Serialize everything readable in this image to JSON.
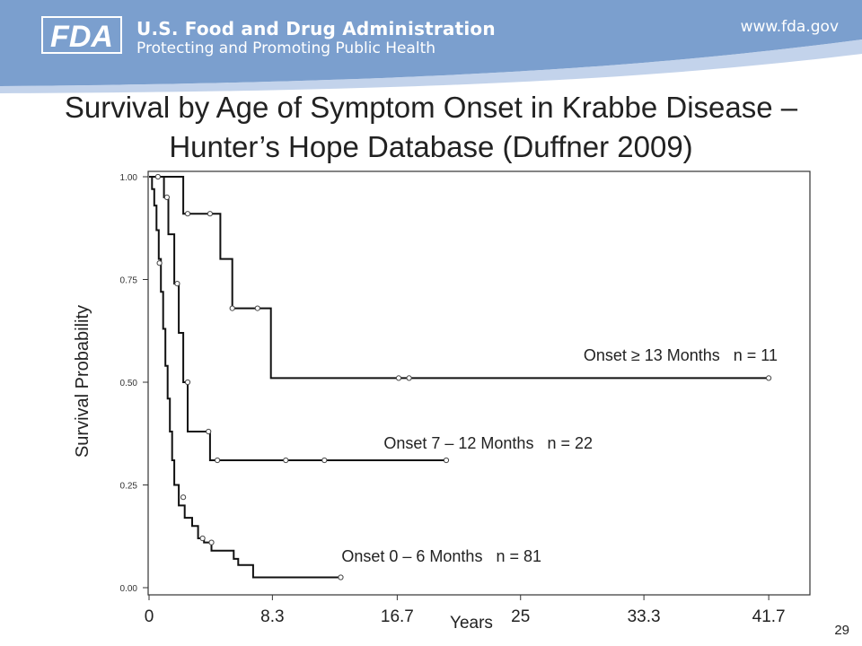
{
  "header": {
    "logo_text": "FDA",
    "agency_name": "U.S. Food and Drug Administration",
    "tagline": "Protecting and Promoting Public Health",
    "website": "www.fda.gov",
    "colors": {
      "banner": "#7b9fce",
      "banner_light": "#a9c1e2"
    }
  },
  "slide": {
    "title_line1": "Survival by Age of Symptom Onset in Krabbe Disease –",
    "title_line2": "Hunter’s Hope Database (Duffner 2009)",
    "page_number": "29"
  },
  "chart_data": {
    "type": "line",
    "title": "",
    "xlabel": "Years",
    "ylabel": "Survival Probability",
    "xlim": [
      0,
      43.5
    ],
    "ylim": [
      0,
      1.0
    ],
    "x_ticks": [
      "0",
      "8.3",
      "16.7",
      "25",
      "33.3",
      "41.7"
    ],
    "x_tick_values": [
      0,
      8.3,
      16.7,
      25,
      33.3,
      41.7
    ],
    "y_ticks": [
      "0.00",
      "0.25",
      "0.50",
      "0.75",
      "1.00"
    ],
    "y_tick_values": [
      0,
      0.25,
      0.5,
      0.75,
      1.0
    ],
    "grid": false,
    "series": [
      {
        "name": "Onset ≥ 13 Months",
        "label": "Onset ≥ 13 Months   n = 11",
        "step_points": [
          [
            0,
            1.0
          ],
          [
            2.3,
            1.0
          ],
          [
            2.3,
            0.91
          ],
          [
            4.8,
            0.91
          ],
          [
            4.8,
            0.8
          ],
          [
            5.6,
            0.8
          ],
          [
            5.6,
            0.68
          ],
          [
            8.2,
            0.68
          ],
          [
            8.2,
            0.51
          ],
          [
            41.7,
            0.51
          ]
        ],
        "censored": [
          [
            0.6,
            1.0
          ],
          [
            2.6,
            0.91
          ],
          [
            4.1,
            0.91
          ],
          [
            5.6,
            0.68
          ],
          [
            7.3,
            0.68
          ],
          [
            16.8,
            0.51
          ],
          [
            17.5,
            0.51
          ],
          [
            41.7,
            0.51
          ]
        ]
      },
      {
        "name": "Onset 7 – 12 Months",
        "label": "Onset 7 – 12 Months   n = 22",
        "step_points": [
          [
            0,
            1.0
          ],
          [
            1.0,
            1.0
          ],
          [
            1.0,
            0.95
          ],
          [
            1.3,
            0.95
          ],
          [
            1.3,
            0.86
          ],
          [
            1.7,
            0.86
          ],
          [
            1.7,
            0.74
          ],
          [
            2.0,
            0.74
          ],
          [
            2.0,
            0.62
          ],
          [
            2.3,
            0.62
          ],
          [
            2.3,
            0.5
          ],
          [
            2.6,
            0.5
          ],
          [
            2.6,
            0.38
          ],
          [
            4.1,
            0.38
          ],
          [
            4.1,
            0.31
          ],
          [
            20.0,
            0.31
          ]
        ],
        "censored": [
          [
            1.2,
            0.95
          ],
          [
            1.9,
            0.74
          ],
          [
            2.6,
            0.5
          ],
          [
            4.0,
            0.38
          ],
          [
            4.6,
            0.31
          ],
          [
            9.2,
            0.31
          ],
          [
            11.8,
            0.31
          ],
          [
            20.0,
            0.31
          ]
        ]
      },
      {
        "name": "Onset 0 – 6 Months",
        "label": "Onset 0 – 6 Months   n = 81",
        "step_points": [
          [
            0,
            1.0
          ],
          [
            0.2,
            1.0
          ],
          [
            0.2,
            0.97
          ],
          [
            0.35,
            0.97
          ],
          [
            0.35,
            0.93
          ],
          [
            0.5,
            0.93
          ],
          [
            0.5,
            0.87
          ],
          [
            0.65,
            0.87
          ],
          [
            0.65,
            0.8
          ],
          [
            0.8,
            0.8
          ],
          [
            0.8,
            0.72
          ],
          [
            0.95,
            0.72
          ],
          [
            0.95,
            0.63
          ],
          [
            1.1,
            0.63
          ],
          [
            1.1,
            0.54
          ],
          [
            1.25,
            0.54
          ],
          [
            1.25,
            0.46
          ],
          [
            1.4,
            0.46
          ],
          [
            1.4,
            0.38
          ],
          [
            1.55,
            0.38
          ],
          [
            1.55,
            0.31
          ],
          [
            1.7,
            0.31
          ],
          [
            1.7,
            0.25
          ],
          [
            2.0,
            0.25
          ],
          [
            2.0,
            0.2
          ],
          [
            2.4,
            0.2
          ],
          [
            2.4,
            0.17
          ],
          [
            2.9,
            0.17
          ],
          [
            2.9,
            0.15
          ],
          [
            3.3,
            0.15
          ],
          [
            3.3,
            0.12
          ],
          [
            3.7,
            0.12
          ],
          [
            3.7,
            0.11
          ],
          [
            4.2,
            0.11
          ],
          [
            4.2,
            0.09
          ],
          [
            5.7,
            0.09
          ],
          [
            5.7,
            0.07
          ],
          [
            6.0,
            0.07
          ],
          [
            6.0,
            0.055
          ],
          [
            7.0,
            0.055
          ],
          [
            7.0,
            0.025
          ],
          [
            12.9,
            0.025
          ]
        ],
        "censored": [
          [
            0.7,
            0.79
          ],
          [
            2.3,
            0.22
          ],
          [
            3.6,
            0.12
          ],
          [
            4.2,
            0.11
          ],
          [
            12.9,
            0.025
          ]
        ]
      }
    ]
  }
}
